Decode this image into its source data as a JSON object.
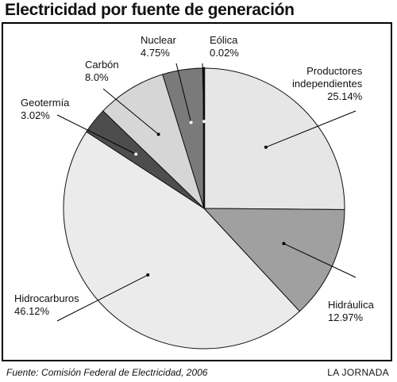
{
  "title": "Electricidad por fuente de generación",
  "source": "Fuente: Comisión Federal de Electricidad, 2006",
  "credit": "LA JORNADA",
  "chart_data": {
    "type": "pie",
    "title": "Electricidad por fuente de generación",
    "start": "12 o'clock",
    "direction": "clockwise",
    "slices": [
      {
        "name_lines": [
          "Productores",
          "independientes"
        ],
        "value": 25.14,
        "value_label": "25.14%",
        "color": "#e6e6e6"
      },
      {
        "name_lines": [
          "Hidráulica"
        ],
        "value": 12.97,
        "value_label": "12.97%",
        "color": "#a0a0a0"
      },
      {
        "name_lines": [
          "Hidrocarburos"
        ],
        "value": 46.12,
        "value_label": "46.12%",
        "color": "#ebebeb"
      },
      {
        "name_lines": [
          "Geotermía"
        ],
        "value": 3.02,
        "value_label": "3.02%",
        "color": "#4d4d4d"
      },
      {
        "name_lines": [
          "Carbón"
        ],
        "value": 8.0,
        "value_label": "8.0%",
        "color": "#d6d6d6"
      },
      {
        "name_lines": [
          "Nuclear"
        ],
        "value": 4.75,
        "value_label": "4.75%",
        "color": "#7a7a7a"
      },
      {
        "name_lines": [
          "Eólica"
        ],
        "value": 0.02,
        "value_label": "0.02%",
        "color": "#111111"
      }
    ]
  }
}
